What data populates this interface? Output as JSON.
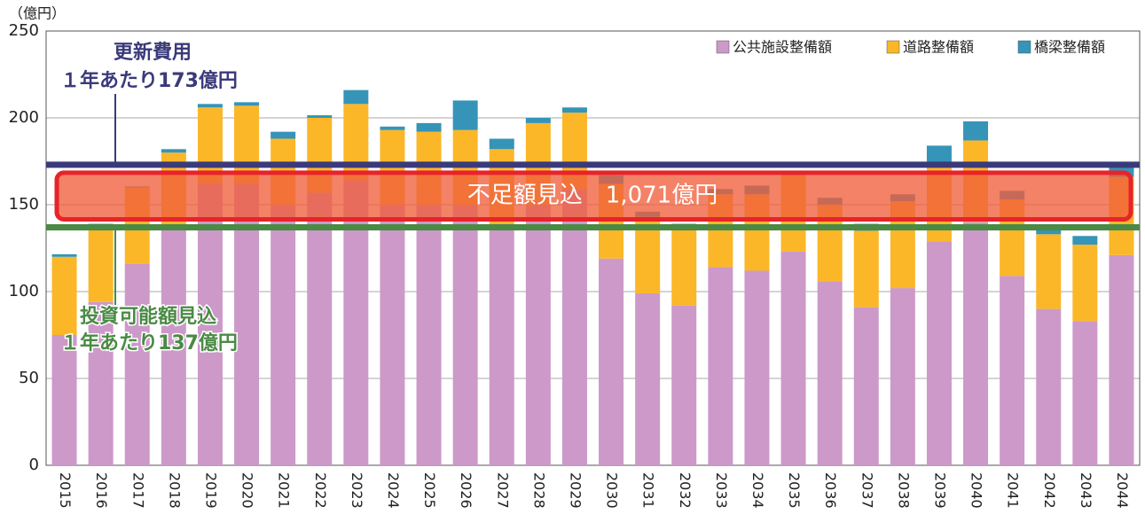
{
  "chart_data": {
    "type": "bar",
    "stacked": true,
    "y_unit": "（億円）",
    "categories": [
      "2015",
      "2016",
      "2017",
      "2018",
      "2019",
      "2020",
      "2021",
      "2022",
      "2023",
      "2024",
      "2025",
      "2026",
      "2027",
      "2028",
      "2029",
      "2030",
      "2031",
      "2032",
      "2033",
      "2034",
      "2035",
      "2036",
      "2037",
      "2038",
      "2039",
      "2040",
      "2041",
      "2042",
      "2043",
      "2044"
    ],
    "series": [
      {
        "name": "公共施設整備額",
        "color": "#cc99c9",
        "values": [
          75,
          94,
          116,
          137,
          162,
          162,
          150,
          157,
          164,
          150,
          150,
          150,
          139,
          150,
          159,
          119,
          99,
          92,
          114,
          112,
          123,
          106,
          91,
          102,
          129,
          140,
          109,
          90,
          83,
          121
        ]
      },
      {
        "name": "道路整備額",
        "color": "#fbb728",
        "values": [
          45,
          44,
          44,
          43,
          44,
          45,
          38,
          43,
          44,
          43,
          42,
          43,
          43,
          47,
          44,
          43,
          44,
          44,
          42,
          44,
          44,
          44,
          44,
          50,
          43,
          47,
          44,
          43,
          44,
          45
        ]
      },
      {
        "name": "橋梁整備額",
        "color": "#3594b8",
        "values": [
          1.5,
          1,
          0.5,
          2,
          2,
          2,
          4,
          1.5,
          8,
          2,
          5,
          17,
          6,
          3,
          3,
          5,
          3,
          3,
          3,
          5,
          1,
          4,
          4,
          4,
          12,
          11,
          5,
          3,
          5,
          7
        ]
      }
    ],
    "ylim": [
      0,
      250
    ],
    "yticks": [
      0,
      50,
      100,
      150,
      200,
      250
    ],
    "grid": true,
    "legend": "top-right",
    "reference_lines": [
      {
        "value": 173,
        "color": "#3a3a7a",
        "texts": [
          "更新費用",
          "１年あたり173億円"
        ]
      },
      {
        "value": 137,
        "color": "#4a8a44",
        "texts": [
          "投資可能額見込",
          "１年あたり137億円"
        ]
      }
    ],
    "shortfall_text": "不足額見込　1,071億円"
  }
}
